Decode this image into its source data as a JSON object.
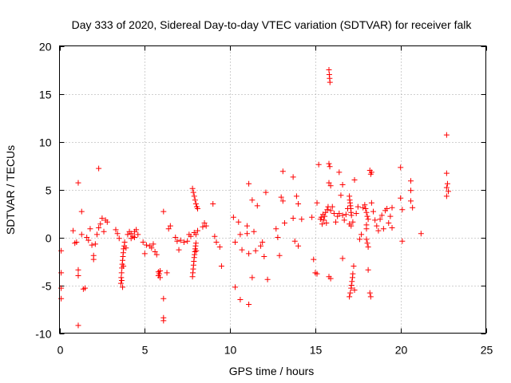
{
  "chart_data": {
    "type": "scatter",
    "title": "Day 333 of 2020, Sidereal Day-to-day VTEC variation (SDTVAR) for receiver falk",
    "xlabel": "GPS time / hours",
    "ylabel": "SDTVAR / TECUs",
    "xlim": [
      0,
      25
    ],
    "ylim": [
      -10,
      20
    ],
    "xticks": [
      0,
      5,
      10,
      15,
      20,
      25
    ],
    "yticks": [
      -10,
      -5,
      0,
      5,
      10,
      15,
      20
    ],
    "grid": true,
    "marker": "plus",
    "marker_color": "#ff0000",
    "series": [
      {
        "name": "SDTVAR",
        "points": [
          [
            0.1,
            -1.4
          ],
          [
            0.1,
            -3.7
          ],
          [
            0.1,
            -5.3
          ],
          [
            0.1,
            -6.4
          ],
          [
            0.8,
            0.7
          ],
          [
            0.9,
            -0.6
          ],
          [
            1.0,
            -0.5
          ],
          [
            1.1,
            -3.4
          ],
          [
            1.1,
            -4.0
          ],
          [
            1.1,
            5.7
          ],
          [
            1.1,
            -9.2
          ],
          [
            1.3,
            2.7
          ],
          [
            1.3,
            0.3
          ],
          [
            1.4,
            -5.4
          ],
          [
            1.5,
            -5.3
          ],
          [
            1.6,
            0.0
          ],
          [
            1.7,
            -0.3
          ],
          [
            1.8,
            0.9
          ],
          [
            1.9,
            -0.8
          ],
          [
            2.0,
            -1.9
          ],
          [
            2.0,
            -2.3
          ],
          [
            2.1,
            -0.7
          ],
          [
            2.2,
            0.3
          ],
          [
            2.3,
            1.0
          ],
          [
            2.3,
            7.2
          ],
          [
            2.4,
            1.4
          ],
          [
            2.5,
            2.0
          ],
          [
            2.6,
            0.6
          ],
          [
            2.7,
            1.8
          ],
          [
            2.8,
            1.6
          ],
          [
            3.3,
            0.8
          ],
          [
            3.4,
            0.4
          ],
          [
            3.5,
            -0.1
          ],
          [
            3.6,
            -4.8
          ],
          [
            3.62,
            -4.2
          ],
          [
            3.64,
            -3.7
          ],
          [
            3.66,
            -3.2
          ],
          [
            3.68,
            -2.8
          ],
          [
            3.7,
            -2.4
          ],
          [
            3.72,
            -2.0
          ],
          [
            3.74,
            -1.6
          ],
          [
            3.76,
            -1.2
          ],
          [
            3.8,
            -0.9
          ],
          [
            3.7,
            -5.2
          ],
          [
            3.65,
            -4.5
          ],
          [
            3.75,
            -3.0
          ],
          [
            3.82,
            -0.5
          ],
          [
            3.9,
            -1.1
          ],
          [
            4.0,
            0.3
          ],
          [
            4.1,
            0.6
          ],
          [
            4.2,
            0.4
          ],
          [
            4.3,
            0.1
          ],
          [
            4.4,
            0.6
          ],
          [
            4.5,
            0.8
          ],
          [
            4.6,
            0.3
          ],
          [
            4.2,
            -0.1
          ],
          [
            4.4,
            0.0
          ],
          [
            4.9,
            -0.5
          ],
          [
            5.0,
            -1.7
          ],
          [
            5.1,
            -0.8
          ],
          [
            5.3,
            -0.9
          ],
          [
            5.4,
            -1.1
          ],
          [
            5.5,
            -0.7
          ],
          [
            5.6,
            -1.5
          ],
          [
            5.7,
            -1.8
          ],
          [
            5.8,
            -3.6
          ],
          [
            5.85,
            -3.8
          ],
          [
            5.9,
            -4.2
          ],
          [
            5.8,
            -4.0
          ],
          [
            5.9,
            -3.5
          ],
          [
            6.1,
            2.7
          ],
          [
            6.1,
            -6.4
          ],
          [
            6.1,
            -8.4
          ],
          [
            6.1,
            -8.7
          ],
          [
            6.3,
            -3.7
          ],
          [
            6.4,
            0.9
          ],
          [
            6.5,
            1.2
          ],
          [
            6.8,
            0.0
          ],
          [
            6.9,
            -0.4
          ],
          [
            7.0,
            -1.3
          ],
          [
            7.1,
            -0.3
          ],
          [
            7.3,
            -0.5
          ],
          [
            7.5,
            -0.4
          ],
          [
            7.6,
            0.3
          ],
          [
            7.7,
            0.1
          ],
          [
            7.8,
            5.1
          ],
          [
            7.85,
            4.7
          ],
          [
            7.9,
            4.3
          ],
          [
            7.95,
            3.9
          ],
          [
            8.0,
            3.5
          ],
          [
            8.05,
            3.2
          ],
          [
            8.1,
            3.0
          ],
          [
            7.8,
            -4.1
          ],
          [
            7.82,
            -3.7
          ],
          [
            7.84,
            -3.3
          ],
          [
            7.86,
            -2.9
          ],
          [
            7.88,
            -2.5
          ],
          [
            7.9,
            -2.1
          ],
          [
            7.92,
            -1.8
          ],
          [
            7.94,
            -1.5
          ],
          [
            7.96,
            -1.2
          ],
          [
            7.98,
            -0.9
          ],
          [
            8.0,
            -0.6
          ],
          [
            8.02,
            -1.4
          ],
          [
            7.9,
            0.5
          ],
          [
            8.0,
            0.3
          ],
          [
            8.1,
            0.7
          ],
          [
            8.4,
            1.1
          ],
          [
            8.5,
            1.5
          ],
          [
            8.6,
            1.2
          ],
          [
            9.0,
            3.5
          ],
          [
            9.1,
            0.1
          ],
          [
            9.2,
            -0.5
          ],
          [
            9.4,
            -1.0
          ],
          [
            9.5,
            -3.0
          ],
          [
            10.2,
            2.1
          ],
          [
            10.3,
            -0.5
          ],
          [
            10.3,
            -5.2
          ],
          [
            10.5,
            1.6
          ],
          [
            10.6,
            0.3
          ],
          [
            10.6,
            -6.5
          ],
          [
            10.7,
            -1.3
          ],
          [
            11.0,
            1.2
          ],
          [
            11.0,
            0.4
          ],
          [
            11.1,
            5.6
          ],
          [
            11.1,
            -1.7
          ],
          [
            11.1,
            -7.0
          ],
          [
            11.3,
            3.9
          ],
          [
            11.3,
            -4.2
          ],
          [
            11.4,
            0.6
          ],
          [
            11.5,
            -1.4
          ],
          [
            11.6,
            3.3
          ],
          [
            11.8,
            -0.9
          ],
          [
            11.9,
            -0.5
          ],
          [
            12.0,
            -2.0
          ],
          [
            12.1,
            4.7
          ],
          [
            12.2,
            -4.4
          ],
          [
            12.7,
            0.9
          ],
          [
            12.8,
            0.0
          ],
          [
            12.9,
            -1.9
          ],
          [
            13.0,
            4.2
          ],
          [
            13.1,
            3.8
          ],
          [
            13.1,
            6.9
          ],
          [
            13.2,
            1.5
          ],
          [
            13.7,
            6.3
          ],
          [
            13.7,
            2.0
          ],
          [
            13.8,
            -0.4
          ],
          [
            13.9,
            4.3
          ],
          [
            14.0,
            3.5
          ],
          [
            14.0,
            -0.9
          ],
          [
            14.2,
            1.9
          ],
          [
            14.8,
            2.1
          ],
          [
            14.9,
            -2.3
          ],
          [
            15.0,
            -3.7
          ],
          [
            15.1,
            -3.8
          ],
          [
            15.1,
            3.6
          ],
          [
            15.2,
            7.6
          ],
          [
            15.3,
            1.9
          ],
          [
            15.35,
            2.1
          ],
          [
            15.4,
            1.4
          ],
          [
            15.45,
            2.4
          ],
          [
            15.5,
            1.8
          ],
          [
            15.55,
            2.2
          ],
          [
            15.6,
            2.6
          ],
          [
            15.65,
            1.5
          ],
          [
            15.7,
            2.9
          ],
          [
            15.75,
            3.2
          ],
          [
            15.8,
            17.5
          ],
          [
            15.82,
            17.0
          ],
          [
            15.84,
            16.6
          ],
          [
            15.86,
            16.2
          ],
          [
            15.8,
            7.7
          ],
          [
            15.85,
            7.4
          ],
          [
            15.8,
            5.7
          ],
          [
            15.9,
            5.4
          ],
          [
            15.8,
            -4.1
          ],
          [
            15.9,
            -4.3
          ],
          [
            15.9,
            2.8
          ],
          [
            16.0,
            3.2
          ],
          [
            16.1,
            2.5
          ],
          [
            16.2,
            1.6
          ],
          [
            16.3,
            2.2
          ],
          [
            16.4,
            2.5
          ],
          [
            16.4,
            6.8
          ],
          [
            16.5,
            4.4
          ],
          [
            16.6,
            5.5
          ],
          [
            16.6,
            2.3
          ],
          [
            16.6,
            -2.2
          ],
          [
            16.7,
            1.8
          ],
          [
            16.8,
            2.4
          ],
          [
            16.9,
            3.0
          ],
          [
            17.0,
            4.3
          ],
          [
            17.02,
            3.9
          ],
          [
            17.04,
            3.6
          ],
          [
            17.06,
            3.3
          ],
          [
            17.08,
            3.0
          ],
          [
            17.1,
            2.6
          ],
          [
            17.12,
            2.3
          ],
          [
            17.0,
            1.4
          ],
          [
            17.1,
            1.2
          ],
          [
            17.2,
            1.6
          ],
          [
            17.0,
            -6.2
          ],
          [
            17.05,
            -5.8
          ],
          [
            17.1,
            -5.3
          ],
          [
            17.12,
            -5.0
          ],
          [
            17.15,
            -4.6
          ],
          [
            17.18,
            -4.2
          ],
          [
            17.2,
            -3.8
          ],
          [
            17.25,
            -3.0
          ],
          [
            17.3,
            -5.5
          ],
          [
            17.3,
            6.0
          ],
          [
            17.4,
            2.5
          ],
          [
            17.5,
            3.2
          ],
          [
            17.6,
            -0.2
          ],
          [
            17.7,
            0.3
          ],
          [
            17.8,
            3.1
          ],
          [
            17.9,
            3.4
          ],
          [
            17.95,
            3.0
          ],
          [
            18.0,
            2.6
          ],
          [
            18.0,
            1.3
          ],
          [
            18.05,
            2.2
          ],
          [
            18.1,
            1.9
          ],
          [
            18.0,
            -0.2
          ],
          [
            18.05,
            -0.6
          ],
          [
            18.0,
            0.9
          ],
          [
            18.1,
            -1.0
          ],
          [
            18.1,
            -3.4
          ],
          [
            18.2,
            -5.8
          ],
          [
            18.25,
            -6.2
          ],
          [
            18.2,
            7.0
          ],
          [
            18.25,
            6.6
          ],
          [
            18.3,
            6.8
          ],
          [
            18.3,
            3.6
          ],
          [
            18.4,
            2.7
          ],
          [
            18.5,
            1.8
          ],
          [
            18.6,
            1.2
          ],
          [
            18.7,
            0.7
          ],
          [
            18.8,
            1.9
          ],
          [
            18.9,
            2.3
          ],
          [
            19.0,
            0.9
          ],
          [
            19.1,
            2.8
          ],
          [
            19.2,
            3.0
          ],
          [
            19.3,
            1.5
          ],
          [
            19.4,
            2.2
          ],
          [
            19.5,
            1.0
          ],
          [
            19.5,
            3.1
          ],
          [
            20.0,
            7.3
          ],
          [
            20.0,
            4.1
          ],
          [
            20.1,
            2.9
          ],
          [
            20.1,
            -0.4
          ],
          [
            20.6,
            5.9
          ],
          [
            20.6,
            4.9
          ],
          [
            20.6,
            3.8
          ],
          [
            20.7,
            3.1
          ],
          [
            21.2,
            0.4
          ],
          [
            22.7,
            10.7
          ],
          [
            22.7,
            6.7
          ],
          [
            22.75,
            5.6
          ],
          [
            22.7,
            5.2
          ],
          [
            22.8,
            4.8
          ],
          [
            22.7,
            4.3
          ]
        ]
      }
    ]
  }
}
